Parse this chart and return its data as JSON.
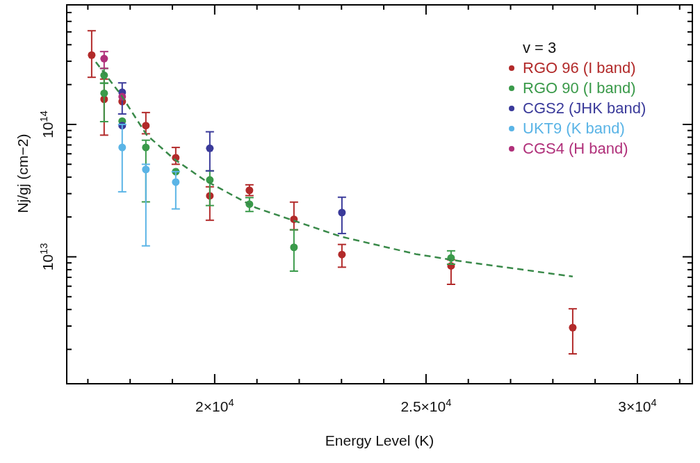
{
  "chart_data": {
    "type": "scatter",
    "xlabel": "Energy Level (K)",
    "ylabel": "Nj/gj (cm−2)",
    "legend_title": "v = 3",
    "legend": "top right",
    "grid": false,
    "log": "y",
    "marker": "circle",
    "xlim": [
      16500,
      31300
    ],
    "xticks": [
      {
        "value": 17000,
        "label": null
      },
      {
        "value": 18000,
        "label": null
      },
      {
        "value": 19000,
        "label": null
      },
      {
        "value": 20000,
        "label": "2×10$^{4}$"
      },
      {
        "value": 21000,
        "label": null
      },
      {
        "value": 22000,
        "label": null
      },
      {
        "value": 23000,
        "label": null
      },
      {
        "value": 24000,
        "label": null
      },
      {
        "value": 25000,
        "label": "2.5×10$^{4}$"
      },
      {
        "value": 26000,
        "label": null
      },
      {
        "value": 27000,
        "label": null
      },
      {
        "value": 28000,
        "label": null
      },
      {
        "value": 29000,
        "label": null
      },
      {
        "value": 30000,
        "label": "3×10$^{4}$"
      },
      {
        "value": 31000,
        "label": null
      }
    ],
    "ylim": [
      1100000000000.0,
      800000000000000.0
    ],
    "yticks": [
      {
        "value": 2000000000000.0,
        "label": null
      },
      {
        "value": 3000000000000.0,
        "label": null
      },
      {
        "value": 4000000000000.0,
        "label": null
      },
      {
        "value": 5000000000000.0,
        "label": null
      },
      {
        "value": 6000000000000.0,
        "label": null
      },
      {
        "value": 7000000000000.0,
        "label": null
      },
      {
        "value": 8000000000000.0,
        "label": null
      },
      {
        "value": 9000000000000.0,
        "label": null
      },
      {
        "value": 10000000000000.0,
        "label": "10$^{13}$"
      },
      {
        "value": 20000000000000.0,
        "label": null
      },
      {
        "value": 30000000000000.0,
        "label": null
      },
      {
        "value": 40000000000000.0,
        "label": null
      },
      {
        "value": 50000000000000.0,
        "label": null
      },
      {
        "value": 60000000000000.0,
        "label": null
      },
      {
        "value": 70000000000000.0,
        "label": null
      },
      {
        "value": 80000000000000.0,
        "label": null
      },
      {
        "value": 90000000000000.0,
        "label": null
      },
      {
        "value": 100000000000000.0,
        "label": "10$^{14}$"
      },
      {
        "value": 200000000000000.0,
        "label": null
      },
      {
        "value": 300000000000000.0,
        "label": null
      },
      {
        "value": 400000000000000.0,
        "label": null
      },
      {
        "value": 500000000000000.0,
        "label": null
      },
      {
        "value": 600000000000000.0,
        "label": null
      },
      {
        "value": 700000000000000.0,
        "label": null
      }
    ],
    "series": [
      {
        "name": "RGO 96 (I band)",
        "color": "#b22a2a",
        "x": [
          17090,
          17385,
          17812,
          18372,
          19079,
          19885,
          20822,
          21875,
          23010,
          25592,
          28470
        ],
        "values": [
          334000000000000.0,
          155000000000000.0,
          149000000000000.0,
          98000000000000.0,
          56000000000000.0,
          28900000000000.0,
          31800000000000.0,
          19200000000000.0,
          10400000000000.0,
          8550000000000.0,
          2920000000000.0
        ],
        "errors": [
          [
            227000000000000.0,
            510000000000000.0
          ],
          [
            83000000000000.0,
            220000000000000.0
          ],
          null,
          [
            85000000000000.0,
            123000000000000.0
          ],
          [
            50000000000000.0,
            67000000000000.0
          ],
          [
            18900000000000.0,
            33800000000000.0
          ],
          [
            29000000000000.0,
            35000000000000.0
          ],
          [
            16000000000000.0,
            25900000000000.0
          ],
          [
            8350000000000.0,
            12400000000000.0
          ],
          [
            6200000000000.0,
            9500000000000.0
          ],
          [
            1850000000000.0,
            4050000000000.0
          ]
        ]
      },
      {
        "name": "RGO 90 (I band)",
        "color": "#3a9a4a",
        "x": [
          17385,
          17385,
          17812,
          18372,
          19079,
          19885,
          20822,
          21875,
          25592
        ],
        "values": [
          235000000000000.0,
          172000000000000.0,
          106000000000000.0,
          67000000000000.0,
          44000000000000.0,
          38100000000000.0,
          25000000000000.0,
          11800000000000.0,
          9800000000000.0
        ],
        "errors": [
          [
            205000000000000.0,
            265000000000000.0
          ],
          [
            105000000000000.0,
            205000000000000.0
          ],
          null,
          [
            26000000000000.0,
            76000000000000.0
          ],
          null,
          [
            24400000000000.0,
            44600000000000.0
          ],
          [
            22000000000000.0,
            28000000000000.0
          ],
          [
            7800000000000.0,
            16000000000000.0
          ],
          [
            8800000000000.0,
            11100000000000.0
          ]
        ]
      },
      {
        "name": "CGS2 (JHK band)",
        "color": "#3a3a9a",
        "x": [
          17812,
          17812,
          19885,
          23010
        ],
        "values": [
          175000000000000.0,
          98000000000000.0,
          66000000000000.0,
          21600000000000.0
        ],
        "errors": [
          [
            120000000000000.0,
            206000000000000.0
          ],
          null,
          [
            44600000000000.0,
            88000000000000.0
          ],
          [
            15000000000000.0,
            28200000000000.0
          ]
        ]
      },
      {
        "name": "UKT9 (K band)",
        "color": "#5ab4e6",
        "x": [
          17812,
          18372,
          19079
        ],
        "values": [
          67000000000000.0,
          45700000000000.0,
          36700000000000.0
        ],
        "errors": [
          [
            31000000000000.0,
            100000000000000.0
          ],
          [
            12100000000000.0,
            50000000000000.0
          ],
          [
            23000000000000.0,
            44000000000000.0
          ]
        ]
      },
      {
        "name": "CGS4 (H band)",
        "color": "#b0307a",
        "x": [
          17385,
          17812
        ],
        "values": [
          314000000000000.0,
          162000000000000.0
        ],
        "errors": [
          [
            265000000000000.0,
            355000000000000.0
          ],
          null
        ]
      },
      {
        "type": "line",
        "color": "#3a8a4a",
        "line_style": "dashed",
        "marker": "none",
        "x": [
          17188,
          17780,
          18388,
          19043,
          19753,
          20970,
          22993,
          24753,
          25789,
          28470
        ],
        "values": [
          296000000000000.0,
          168000000000000.0,
          83500000000000.0,
          54700000000000.0,
          38100000000000.0,
          23500000000000.0,
          14200000000000.0,
          10500000000000.0,
          9300000000000.0,
          7100000000000.0
        ]
      }
    ]
  }
}
